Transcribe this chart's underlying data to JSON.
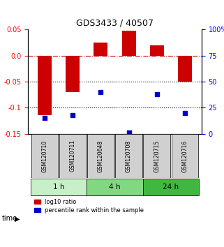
{
  "title": "GDS3433 / 40507",
  "samples": [
    "GSM120710",
    "GSM120711",
    "GSM120648",
    "GSM120708",
    "GSM120715",
    "GSM120716"
  ],
  "log10_ratio": [
    -0.115,
    -0.07,
    0.025,
    0.048,
    0.02,
    -0.05
  ],
  "percentile_rank": [
    15,
    18,
    40,
    1,
    38,
    20
  ],
  "ylim_left": [
    -0.15,
    0.05
  ],
  "ylim_right": [
    0,
    100
  ],
  "yticks_left": [
    -0.15,
    -0.1,
    -0.05,
    0.0,
    0.05
  ],
  "yticks_right": [
    0,
    25,
    50,
    75,
    100
  ],
  "time_groups": [
    {
      "label": "1 h",
      "start": 0,
      "end": 2,
      "color": "#c8f0c8"
    },
    {
      "label": "4 h",
      "start": 2,
      "end": 4,
      "color": "#80d880"
    },
    {
      "label": "24 h",
      "start": 4,
      "end": 6,
      "color": "#40b840"
    }
  ],
  "bar_color": "#cc0000",
  "dot_color": "#0000cc",
  "bar_width": 0.5,
  "hline_color": "#cc0000",
  "hline_style": "-.",
  "dotted_line_color": "black",
  "background_color": "white",
  "sample_box_color": "#d0d0d0",
  "legend_bar_label": "log10 ratio",
  "legend_dot_label": "percentile rank within the sample"
}
